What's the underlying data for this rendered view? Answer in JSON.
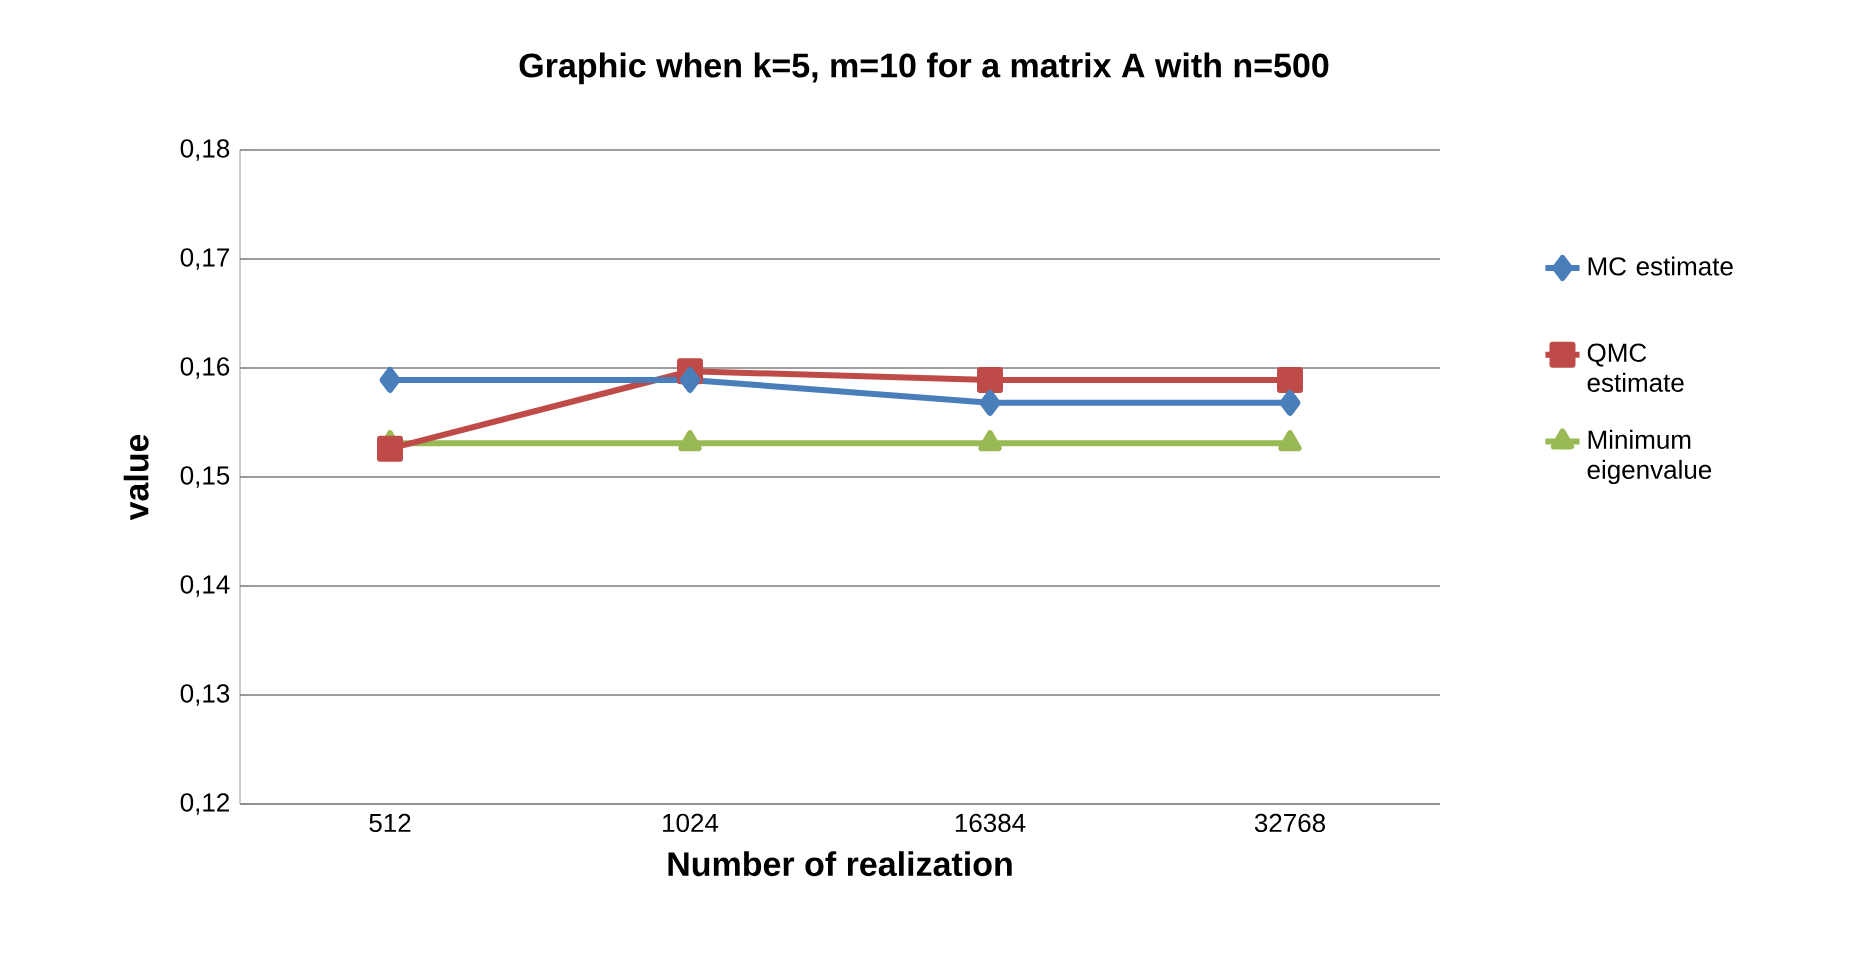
{
  "chart_data": {
    "type": "line",
    "title": "Graphic when k=5, m=10 for a matrix A  with n=500",
    "xlabel": "Number of realization",
    "ylabel": "value",
    "categories": [
      "512",
      "1024",
      "16384",
      "32768"
    ],
    "series": [
      {
        "name": "MC estimate",
        "color": "#4a7ebb",
        "marker": "diamond",
        "values": [
          0.1589,
          0.1589,
          0.1568,
          0.1568
        ]
      },
      {
        "name": "QMC estimate",
        "color": "#be4b48",
        "marker": "square",
        "values": [
          0.1526,
          0.1597,
          0.1589,
          0.1589
        ]
      },
      {
        "name": "Minimum eigenvalue",
        "color": "#98b954",
        "marker": "triangle",
        "values": [
          0.1531,
          0.1531,
          0.1531,
          0.1531
        ]
      }
    ],
    "ylim": [
      0.12,
      0.18
    ],
    "yticks": [
      {
        "value": 0.12,
        "label": "0,12"
      },
      {
        "value": 0.13,
        "label": "0,13"
      },
      {
        "value": 0.14,
        "label": "0,14"
      },
      {
        "value": 0.15,
        "label": "0,15"
      },
      {
        "value": 0.16,
        "label": "0,16"
      },
      {
        "value": 0.17,
        "label": "0,17"
      },
      {
        "value": 0.18,
        "label": "0,18"
      }
    ],
    "grid": "y",
    "legend": "right"
  }
}
